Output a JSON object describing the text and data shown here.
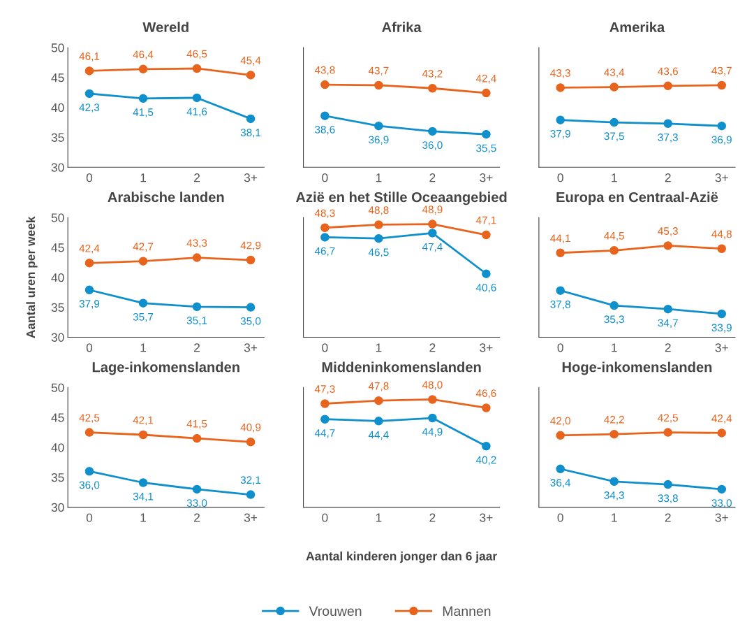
{
  "chart_data": [
    {
      "type": "line",
      "title": "Wereld",
      "categories": [
        "0",
        "1",
        "2",
        "3+"
      ],
      "ylim": [
        30,
        50
      ],
      "yticks": [
        30,
        35,
        40,
        45,
        50
      ],
      "marker": "circle",
      "grid": false,
      "series": [
        {
          "color": "#0f8fcc",
          "values": [
            42.3,
            41.5,
            41.6,
            38.1
          ],
          "value_labels": [
            "42,3",
            "41,5",
            "41,6",
            "38,1"
          ]
        },
        {
          "color": "#e8641c",
          "values": [
            46.1,
            46.4,
            46.5,
            45.4
          ],
          "value_labels": [
            "46,1",
            "46,4",
            "46,5",
            "45,4"
          ]
        }
      ]
    },
    {
      "type": "line",
      "title": "Afrika",
      "categories": [
        "0",
        "1",
        "2",
        "3+"
      ],
      "ylim": [
        30,
        50
      ],
      "yticks": [
        30,
        35,
        40,
        45,
        50
      ],
      "tick_labels": "x",
      "marker": "circle",
      "grid": false,
      "series": [
        {
          "color": "#0f8fcc",
          "values": [
            38.6,
            36.9,
            36.0,
            35.5
          ],
          "value_labels": [
            "38,6",
            "36,9",
            "36,0",
            "35,5"
          ]
        },
        {
          "color": "#e8641c",
          "values": [
            43.8,
            43.7,
            43.2,
            42.4
          ],
          "value_labels": [
            "43,8",
            "43,7",
            "43,2",
            "42,4"
          ]
        }
      ]
    },
    {
      "type": "line",
      "title": "Amerika",
      "categories": [
        "0",
        "1",
        "2",
        "3+"
      ],
      "ylim": [
        30,
        50
      ],
      "yticks": [
        30,
        35,
        40,
        45,
        50
      ],
      "tick_labels": "x",
      "marker": "circle",
      "grid": false,
      "series": [
        {
          "color": "#0f8fcc",
          "values": [
            37.9,
            37.5,
            37.3,
            36.9
          ],
          "value_labels": [
            "37,9",
            "37,5",
            "37,3",
            "36,9"
          ]
        },
        {
          "color": "#e8641c",
          "values": [
            43.3,
            43.4,
            43.6,
            43.7
          ],
          "value_labels": [
            "43,3",
            "43,4",
            "43,6",
            "43,7"
          ]
        }
      ]
    },
    {
      "type": "line",
      "title": "Arabische landen",
      "ylabel": "Aantal uren per week",
      "categories": [
        "0",
        "1",
        "2",
        "3+"
      ],
      "ylim": [
        30,
        50
      ],
      "yticks": [
        30,
        35,
        40,
        45,
        50
      ],
      "marker": "circle",
      "grid": false,
      "series": [
        {
          "color": "#0f8fcc",
          "values": [
            37.9,
            35.7,
            35.1,
            35.0
          ],
          "value_labels": [
            "37,9",
            "35,7",
            "35,1",
            "35,0"
          ]
        },
        {
          "color": "#e8641c",
          "values": [
            42.4,
            42.7,
            43.3,
            42.9
          ],
          "value_labels": [
            "42,4",
            "42,7",
            "43,3",
            "42,9"
          ]
        }
      ]
    },
    {
      "type": "line",
      "title": "Azië en het Stille Oceaangebied",
      "categories": [
        "0",
        "1",
        "2",
        "3+"
      ],
      "ylim": [
        30,
        50
      ],
      "yticks": [
        30,
        35,
        40,
        45,
        50
      ],
      "tick_labels": "x",
      "marker": "circle",
      "grid": false,
      "series": [
        {
          "color": "#0f8fcc",
          "values": [
            46.7,
            46.5,
            47.4,
            40.6
          ],
          "value_labels": [
            "46,7",
            "46,5",
            "47,4",
            "40,6"
          ]
        },
        {
          "color": "#e8641c",
          "values": [
            48.3,
            48.8,
            48.9,
            47.1
          ],
          "value_labels": [
            "48,3",
            "48,8",
            "48,9",
            "47,1"
          ]
        }
      ]
    },
    {
      "type": "line",
      "title": "Europa en Centraal-Azië",
      "categories": [
        "0",
        "1",
        "2",
        "3+"
      ],
      "ylim": [
        30,
        50
      ],
      "yticks": [
        30,
        35,
        40,
        45,
        50
      ],
      "tick_labels": "x",
      "marker": "circle",
      "grid": false,
      "series": [
        {
          "color": "#0f8fcc",
          "values": [
            37.8,
            35.3,
            34.7,
            33.9
          ],
          "value_labels": [
            "37,8",
            "35,3",
            "34,7",
            "33,9"
          ]
        },
        {
          "color": "#e8641c",
          "values": [
            44.1,
            44.5,
            45.3,
            44.8
          ],
          "value_labels": [
            "44,1",
            "44,5",
            "45,3",
            "44,8"
          ]
        }
      ]
    },
    {
      "type": "line",
      "title": "Lage-inkomenslanden",
      "categories": [
        "0",
        "1",
        "2",
        "3+"
      ],
      "ylim": [
        30,
        50
      ],
      "yticks": [
        30,
        35,
        40,
        45,
        50
      ],
      "marker": "circle",
      "grid": false,
      "series": [
        {
          "color": "#0f8fcc",
          "values": [
            36.0,
            34.1,
            33.0,
            32.1
          ],
          "value_labels": [
            "36,0",
            "34,1",
            "33,0",
            "32,1"
          ]
        },
        {
          "color": "#e8641c",
          "values": [
            42.5,
            42.1,
            41.5,
            40.9
          ],
          "value_labels": [
            "42,5",
            "42,1",
            "41,5",
            "40,9"
          ]
        }
      ]
    },
    {
      "type": "line",
      "title": "Middeninkomenslanden",
      "xlabel": "Aantal kinderen jonger dan 6 jaar",
      "legend": "bottom",
      "categories": [
        "0",
        "1",
        "2",
        "3+"
      ],
      "ylim": [
        30,
        50
      ],
      "yticks": [
        30,
        35,
        40,
        45,
        50
      ],
      "tick_labels": "x",
      "marker": "circle",
      "grid": false,
      "series": [
        {
          "name": "Vrouwen",
          "color": "#0f8fcc",
          "values": [
            44.7,
            44.4,
            44.9,
            40.2
          ],
          "value_labels": [
            "44,7",
            "44,4",
            "44,9",
            "40,2"
          ]
        },
        {
          "name": "Mannen",
          "color": "#e8641c",
          "values": [
            47.3,
            47.8,
            48.0,
            46.6
          ],
          "value_labels": [
            "47,3",
            "47,8",
            "48,0",
            "46,6"
          ]
        }
      ]
    },
    {
      "type": "line",
      "title": "Hoge-inkomenslanden",
      "categories": [
        "0",
        "1",
        "2",
        "3+"
      ],
      "ylim": [
        30,
        50
      ],
      "yticks": [
        30,
        35,
        40,
        45,
        50
      ],
      "tick_labels": "x",
      "marker": "circle",
      "grid": false,
      "series": [
        {
          "color": "#0f8fcc",
          "values": [
            36.4,
            34.3,
            33.8,
            33.0
          ],
          "value_labels": [
            "36,4",
            "34,3",
            "33,8",
            "33,0"
          ]
        },
        {
          "color": "#e8641c",
          "values": [
            42.0,
            42.2,
            42.5,
            42.4
          ],
          "value_labels": [
            "42,0",
            "42,2",
            "42,5",
            "42,4"
          ]
        }
      ]
    }
  ]
}
